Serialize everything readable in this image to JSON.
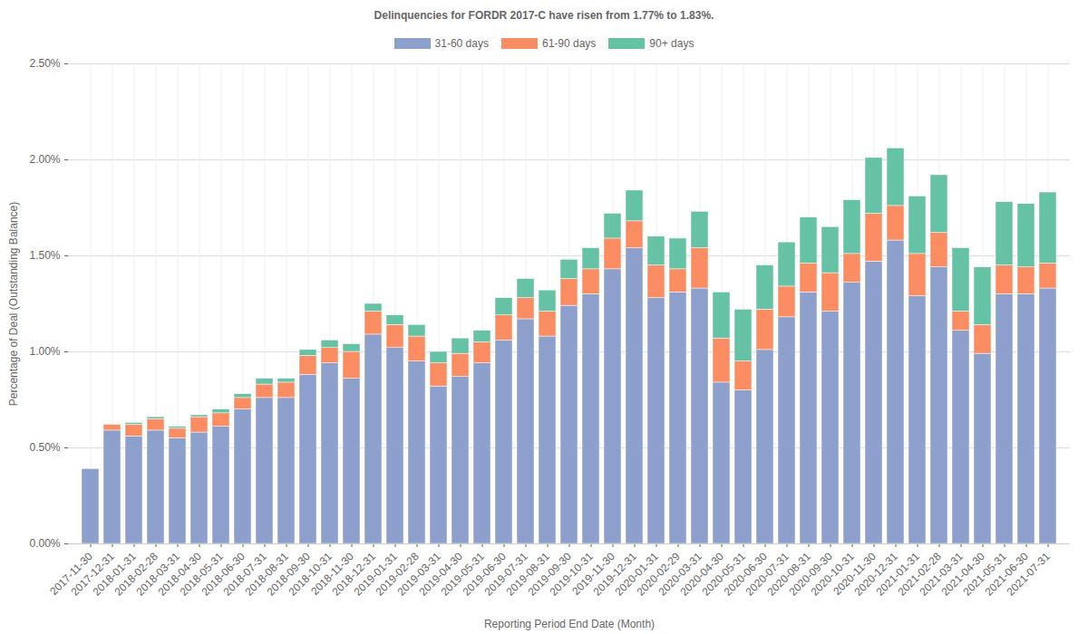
{
  "chart_data": {
    "type": "bar",
    "title": "Delinquencies for FORDR 2017-C have risen from 1.77% to 1.83%.",
    "x_label": "Reporting Period End Date (Month)",
    "y_label": "Percentage of Deal (Outstanding Balance)",
    "stacked": true,
    "grid": true,
    "legend": "top",
    "categories": [
      "2017-11-30",
      "2017-12-31",
      "2018-01-31",
      "2018-02-28",
      "2018-03-31",
      "2018-04-30",
      "2018-05-31",
      "2018-06-30",
      "2018-07-31",
      "2018-08-31",
      "2018-09-30",
      "2018-10-31",
      "2018-11-30",
      "2018-12-31",
      "2019-01-31",
      "2019-02-28",
      "2019-03-31",
      "2019-04-30",
      "2019-05-31",
      "2019-06-30",
      "2019-07-31",
      "2019-08-31",
      "2019-09-30",
      "2019-10-31",
      "2019-11-30",
      "2019-12-31",
      "2020-01-31",
      "2020-02-29",
      "2020-03-31",
      "2020-04-30",
      "2020-05-31",
      "2020-06-30",
      "2020-07-31",
      "2020-08-31",
      "2020-09-30",
      "2020-10-31",
      "2020-11-30",
      "2020-12-31",
      "2021-01-31",
      "2021-02-28",
      "2021-03-31",
      "2021-04-30",
      "2021-05-31",
      "2021-06-30",
      "2021-07-31"
    ],
    "series": [
      {
        "name": "31-60 days",
        "color": "#8da0cb",
        "values": [
          0.39,
          0.59,
          0.56,
          0.59,
          0.55,
          0.58,
          0.61,
          0.7,
          0.76,
          0.76,
          0.88,
          0.94,
          0.86,
          1.09,
          1.02,
          0.95,
          0.82,
          0.87,
          0.94,
          1.06,
          1.17,
          1.08,
          1.24,
          1.3,
          1.43,
          1.54,
          1.28,
          1.31,
          1.33,
          0.84,
          0.8,
          1.01,
          1.18,
          1.31,
          1.21,
          1.36,
          1.47,
          1.58,
          1.29,
          1.44,
          1.11,
          0.99,
          1.3,
          1.3,
          1.33
        ]
      },
      {
        "name": "61-90 days",
        "color": "#fc8d62",
        "values": [
          0,
          0.03,
          0.06,
          0.06,
          0.05,
          0.08,
          0.07,
          0.06,
          0.07,
          0.08,
          0.1,
          0.08,
          0.14,
          0.12,
          0.12,
          0.13,
          0.12,
          0.12,
          0.11,
          0.13,
          0.11,
          0.13,
          0.14,
          0.13,
          0.16,
          0.14,
          0.17,
          0.12,
          0.21,
          0.23,
          0.15,
          0.21,
          0.16,
          0.15,
          0.2,
          0.15,
          0.25,
          0.18,
          0.22,
          0.18,
          0.1,
          0.15,
          0.15,
          0.14,
          0.13
        ]
      },
      {
        "name": "90+ days",
        "color": "#66c2a5",
        "values": [
          0,
          0,
          0.01,
          0.01,
          0.01,
          0.01,
          0.02,
          0.02,
          0.03,
          0.02,
          0.03,
          0.04,
          0.04,
          0.04,
          0.05,
          0.06,
          0.06,
          0.08,
          0.06,
          0.09,
          0.1,
          0.11,
          0.1,
          0.11,
          0.13,
          0.16,
          0.15,
          0.16,
          0.19,
          0.24,
          0.27,
          0.23,
          0.23,
          0.24,
          0.24,
          0.28,
          0.29,
          0.3,
          0.3,
          0.3,
          0.33,
          0.3,
          0.33,
          0.33,
          0.37
        ]
      }
    ],
    "ylim": [
      0,
      2.5
    ],
    "yticks": [
      {
        "value": 0,
        "label": "0.00%"
      },
      {
        "value": 0.5,
        "label": "0.50%"
      },
      {
        "value": 1,
        "label": "1.00%"
      },
      {
        "value": 1.5,
        "label": "1.50%"
      },
      {
        "value": 2,
        "label": "2.00%"
      },
      {
        "value": 2.5,
        "label": "2.50%"
      }
    ]
  }
}
